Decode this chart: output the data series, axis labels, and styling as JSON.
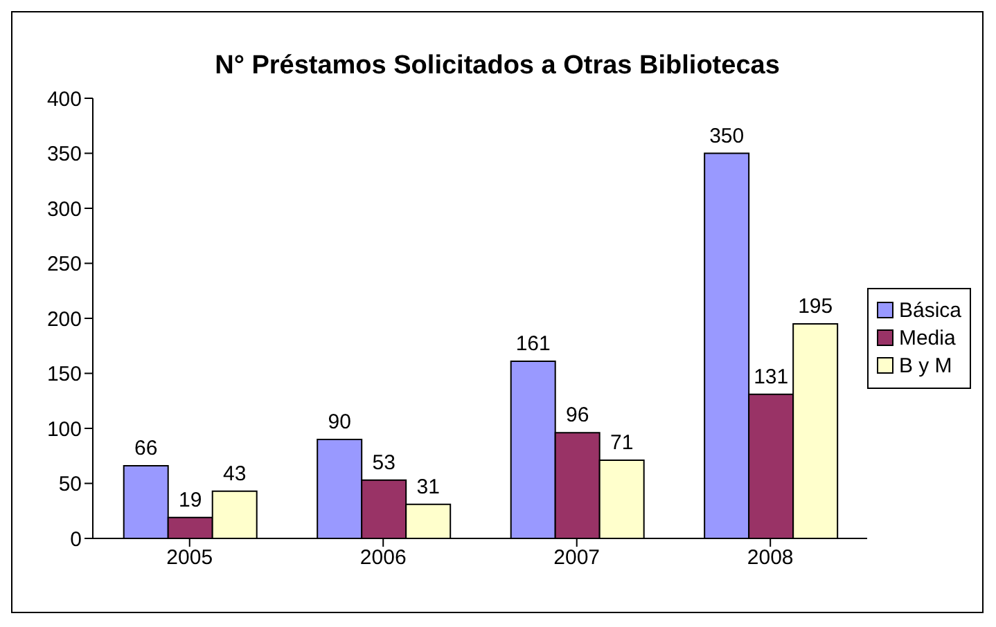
{
  "chart_data": {
    "type": "bar",
    "title": "N° Préstamos Solicitados a Otras Bibliotecas",
    "categories": [
      "2005",
      "2006",
      "2007",
      "2008"
    ],
    "series": [
      {
        "name": "Básica",
        "color": "#9999ff",
        "values": [
          66,
          90,
          161,
          350
        ]
      },
      {
        "name": "Media",
        "color": "#993366",
        "values": [
          19,
          53,
          96,
          131
        ]
      },
      {
        "name": "B y M",
        "color": "#ffffcc",
        "values": [
          43,
          31,
          71,
          195
        ]
      }
    ],
    "ylim": [
      0,
      400
    ],
    "yticks": [
      0,
      50,
      100,
      150,
      200,
      250,
      300,
      350,
      400
    ],
    "grid": false,
    "legend": "right",
    "data_labels": true
  }
}
